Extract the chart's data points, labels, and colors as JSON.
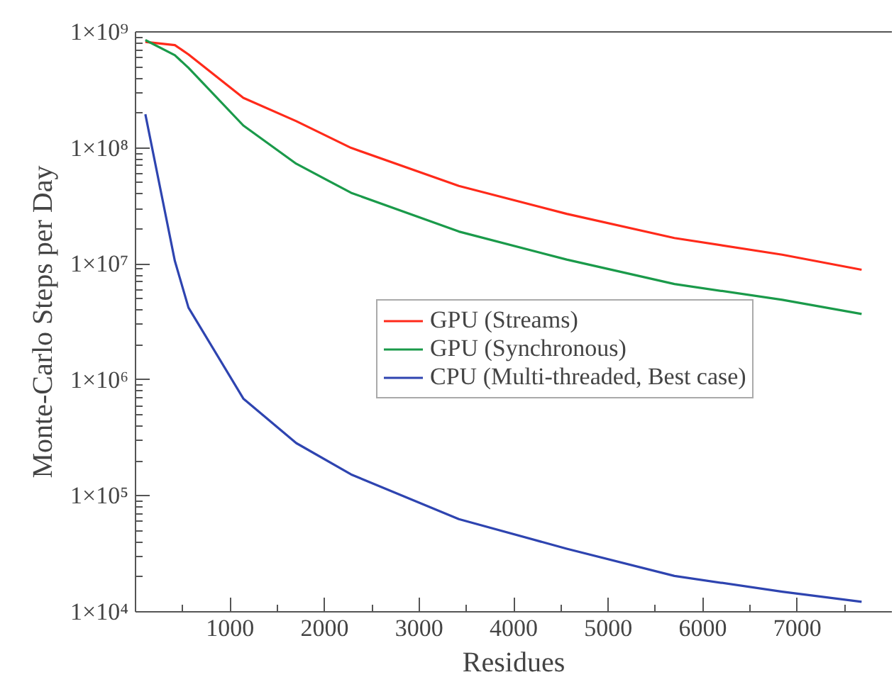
{
  "chart_data": {
    "type": "line",
    "xlabel": "Residues",
    "ylabel": "Monte-Carlo Steps per Day",
    "x": [
      104,
      416,
      560,
      1140,
      1700,
      2280,
      3420,
      4560,
      5700,
      6840,
      7680
    ],
    "series": [
      {
        "name": "GPU (Streams)",
        "color": "#ff2a1a",
        "values": [
          820000000,
          770000000,
          640000000,
          270000000,
          170000000,
          100000000,
          47000000,
          27000000,
          16700000,
          12000000,
          8900000
        ]
      },
      {
        "name": "GPU (Synchronous)",
        "color": "#1a9a4a",
        "values": [
          850000000,
          630000000,
          490000000,
          156000000,
          73000000,
          41000000,
          19000000,
          10900000,
          6700000,
          4900000,
          3700000
        ]
      },
      {
        "name": "CPU (Multi-threaded, Best case)",
        "color": "#2e44b0",
        "values": [
          195000000,
          10600000,
          4200000,
          690000,
          285000,
          153000,
          63000,
          35000,
          20400,
          14900,
          12200
        ]
      }
    ],
    "log": "y",
    "xlim": [
      0,
      8000
    ],
    "ylim": [
      10000,
      1000000000
    ],
    "xticks": [
      {
        "value": 500,
        "label": null
      },
      1000,
      {
        "value": 1500,
        "label": null
      },
      2000,
      {
        "value": 2500,
        "label": null
      },
      3000,
      {
        "value": 3500,
        "label": null
      },
      4000,
      {
        "value": 4500,
        "label": null
      },
      5000,
      {
        "value": 5500,
        "label": null
      },
      6000,
      {
        "value": 6500,
        "label": null
      },
      7000,
      {
        "value": 7500,
        "label": null
      }
    ],
    "yticks": [
      {
        "value": 10000,
        "label": "1×10⁴"
      },
      {
        "value": 100000,
        "label": "1×10⁵"
      },
      {
        "value": 1000000,
        "label": "1×10⁶"
      },
      {
        "value": 10000000,
        "label": "1×10⁷"
      },
      {
        "value": 100000000,
        "label": "1×10⁸"
      },
      {
        "value": 1000000000,
        "label": "1×10⁹"
      }
    ],
    "grid": false,
    "legend": "right",
    "marker": "none",
    "line_style": "solid"
  }
}
